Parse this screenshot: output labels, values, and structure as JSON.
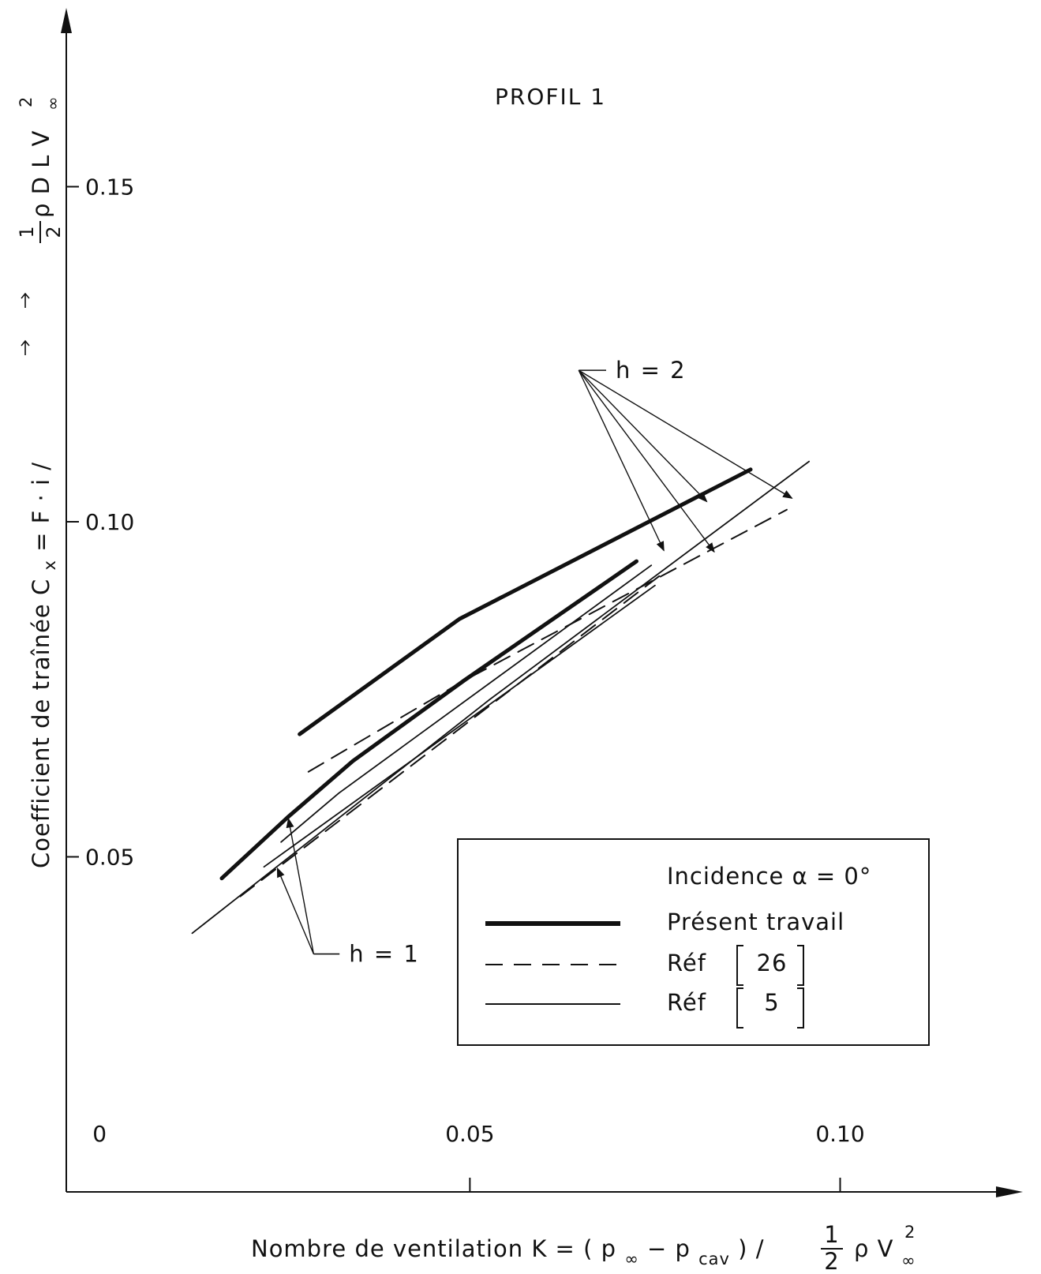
{
  "chart_data": {
    "type": "line",
    "title": "PROFIL 1",
    "xlabel": {
      "prefix": "Nombre   de   ventilation   K  =  ( p",
      "sub1": "∞",
      "mid": " − p",
      "sub2": "cav",
      "suffix": ") / ",
      "frac_num": "1",
      "frac_den": "2",
      "tail": "ρ V",
      "tail_sup": "2",
      "tail_sub": "∞"
    },
    "ylabel": {
      "prefix": "Coefficient   de   traînée    C",
      "sub1": "x",
      "eq": "  =  ",
      "f": "F",
      "dot": " · ",
      "i": "i",
      "slash": "  /  ",
      "frac_num": "1",
      "frac_den": "2",
      "tail": " ρ D L V",
      "tail_sup": "2",
      "tail_sub": "∞"
    },
    "xlim": [
      -0.0045,
      0.1235
    ],
    "ylim": [
      0,
      0.1755
    ],
    "x_ticks": [
      {
        "value": 0,
        "label": "0"
      },
      {
        "value": 0.05,
        "label": "0.05"
      },
      {
        "value": 0.1,
        "label": "0.10"
      }
    ],
    "y_ticks": [
      {
        "value": 0.05,
        "label": "0.05"
      },
      {
        "value": 0.1,
        "label": "0.10"
      },
      {
        "value": 0.15,
        "label": "0.15"
      }
    ],
    "legend": {
      "title_text": "Incidence   α  = 0°",
      "entries": [
        {
          "label": "Présent  travail",
          "style": "thick"
        },
        {
          "label": "Réf",
          "ref": "26",
          "style": "dashed"
        },
        {
          "label": "Réf",
          "ref": "5",
          "style": "thin"
        }
      ],
      "position": "bottom-right"
    },
    "series": [
      {
        "group": "Présent travail",
        "style": "thick",
        "h": "2",
        "points": [
          [
            0.027,
            0.0683
          ],
          [
            0.0486,
            0.0855
          ],
          [
            0.0879,
            0.1078
          ]
        ]
      },
      {
        "group": "Présent travail",
        "style": "thick",
        "h": "1",
        "points": [
          [
            0.0165,
            0.0468
          ],
          [
            0.0254,
            0.0559
          ],
          [
            0.0342,
            0.0643
          ],
          [
            0.0492,
            0.0763
          ],
          [
            0.0725,
            0.0941
          ]
        ]
      },
      {
        "group": "Réf [26]",
        "style": "dashed",
        "h": "2",
        "points": [
          [
            0.0282,
            0.0627
          ],
          [
            0.0492,
            0.0763
          ],
          [
            0.0928,
            0.1018
          ]
        ]
      },
      {
        "group": "Réf [26]",
        "style": "dashed",
        "h": "1",
        "points": [
          [
            0.019,
            0.0441
          ],
          [
            0.0757,
            0.092
          ]
        ]
      },
      {
        "group": "Réf [5]",
        "style": "thin",
        "h": "2",
        "points": [
          [
            0.0125,
            0.0386
          ],
          [
            0.0527,
            0.0735
          ],
          [
            0.0958,
            0.109
          ]
        ]
      },
      {
        "group": "Réf [5]",
        "style": "thin",
        "h": "1",
        "points": [
          [
            0.0245,
            0.0522
          ],
          [
            0.0323,
            0.0595
          ],
          [
            0.0745,
            0.0935
          ]
        ]
      },
      {
        "group": "Réf [5]",
        "style": "thin",
        "h": "1",
        "points": [
          [
            0.0222,
            0.0485
          ],
          [
            0.075,
            0.0905
          ]
        ]
      }
    ],
    "annotations": [
      {
        "text": "h  =  2",
        "anchor": [
          0.0647,
          0.1226
        ],
        "label_at": [
          0.0684,
          0.1226
        ],
        "targets": [
          [
            0.082,
            0.103
          ],
          [
            0.0762,
            0.0957
          ],
          [
            0.0935,
            0.1035
          ],
          [
            0.083,
            0.0955
          ]
        ]
      },
      {
        "text": "h  =  1",
        "anchor": [
          0.0289,
          0.0355
        ],
        "label_at": [
          0.0324,
          0.0355
        ],
        "targets": [
          [
            0.0255,
            0.0557
          ],
          [
            0.024,
            0.0483
          ]
        ]
      }
    ],
    "grid": false
  }
}
